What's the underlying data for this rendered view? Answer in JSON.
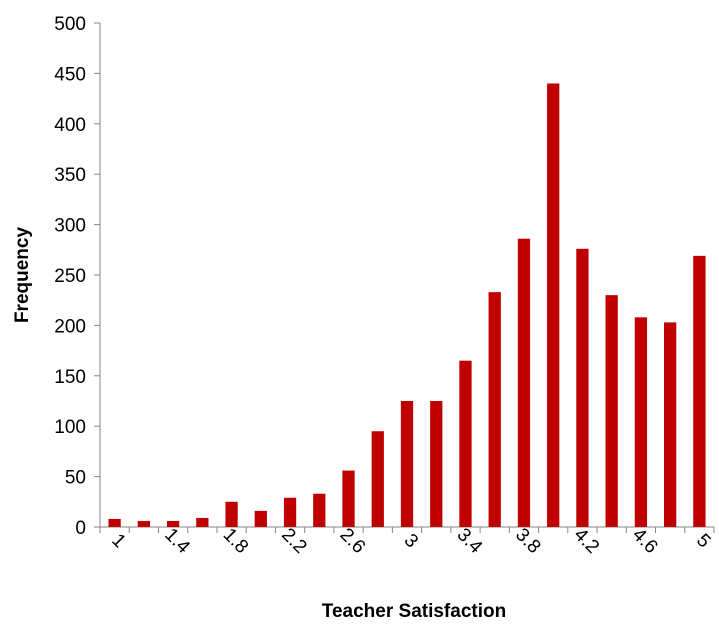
{
  "chart_data": {
    "type": "bar",
    "title": "",
    "xlabel": "Teacher Satisfaction",
    "ylabel": "Frequency",
    "ylim": [
      0,
      500
    ],
    "y_ticks": [
      "0",
      "50",
      "100",
      "150",
      "200",
      "250",
      "300",
      "350",
      "400",
      "450",
      "500"
    ],
    "x_tick_labels": [
      "1",
      "1.4",
      "1.8",
      "2.2",
      "2.6",
      "3",
      "3.4",
      "3.8",
      "4.2",
      "4.6",
      "5"
    ],
    "categories": [
      "1",
      "1.2",
      "1.4",
      "1.6",
      "1.8",
      "2",
      "2.2",
      "2.4",
      "2.6",
      "2.8",
      "3",
      "3.2",
      "3.4",
      "3.6",
      "3.8",
      "4",
      "4.2",
      "4.4",
      "4.6",
      "4.8",
      "5"
    ],
    "values": [
      8,
      6,
      6,
      9,
      25,
      16,
      29,
      33,
      56,
      95,
      125,
      125,
      165,
      233,
      286,
      440,
      276,
      230,
      208,
      203,
      269
    ],
    "grid": false,
    "legend": "none",
    "bar_color": "#C00000"
  }
}
